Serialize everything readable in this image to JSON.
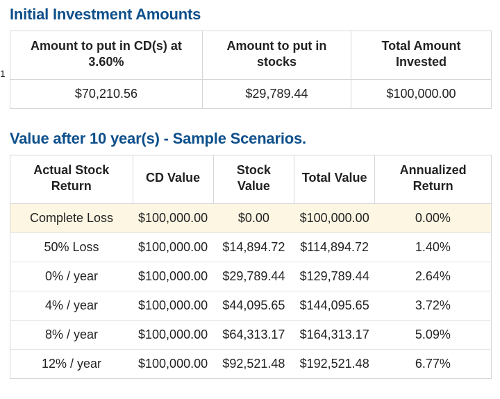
{
  "colors": {
    "heading": "#0d4f8b",
    "border": "#d6d6d6",
    "row_divider": "#e3e3e3",
    "highlight_bg": "#fdf6e3",
    "text": "#222222",
    "background": "#ffffff"
  },
  "typography": {
    "heading_fontsize": 22,
    "heading_weight": 600,
    "th_fontsize": 18,
    "th_weight": 700,
    "td_fontsize": 18
  },
  "row_marker": "1",
  "invest_section": {
    "title": "Initial Investment Amounts",
    "columns": [
      "Amount to put in CD(s) at 3.60%",
      "Amount to put in stocks",
      "Total Amount Invested"
    ],
    "row": [
      "$70,210.56",
      "$29,789.44",
      "$100,000.00"
    ]
  },
  "scenarios_section": {
    "title": "Value after 10 year(s) - Sample Scenarios.",
    "columns": [
      "Actual Stock Return",
      "CD Value",
      "Stock Value",
      "Total Value",
      "Annualized Return"
    ],
    "rows": [
      {
        "cells": [
          "Complete Loss",
          "$100,000.00",
          "$0.00",
          "$100,000.00",
          "0.00%"
        ],
        "highlight": true
      },
      {
        "cells": [
          "50% Loss",
          "$100,000.00",
          "$14,894.72",
          "$114,894.72",
          "1.40%"
        ],
        "highlight": false
      },
      {
        "cells": [
          "0% / year",
          "$100,000.00",
          "$29,789.44",
          "$129,789.44",
          "2.64%"
        ],
        "highlight": false
      },
      {
        "cells": [
          "4% / year",
          "$100,000.00",
          "$44,095.65",
          "$144,095.65",
          "3.72%"
        ],
        "highlight": false
      },
      {
        "cells": [
          "8% / year",
          "$100,000.00",
          "$64,313.17",
          "$164,313.17",
          "5.09%"
        ],
        "highlight": false
      },
      {
        "cells": [
          "12% / year",
          "$100,000.00",
          "$92,521.48",
          "$192,521.48",
          "6.77%"
        ],
        "highlight": false
      }
    ]
  }
}
